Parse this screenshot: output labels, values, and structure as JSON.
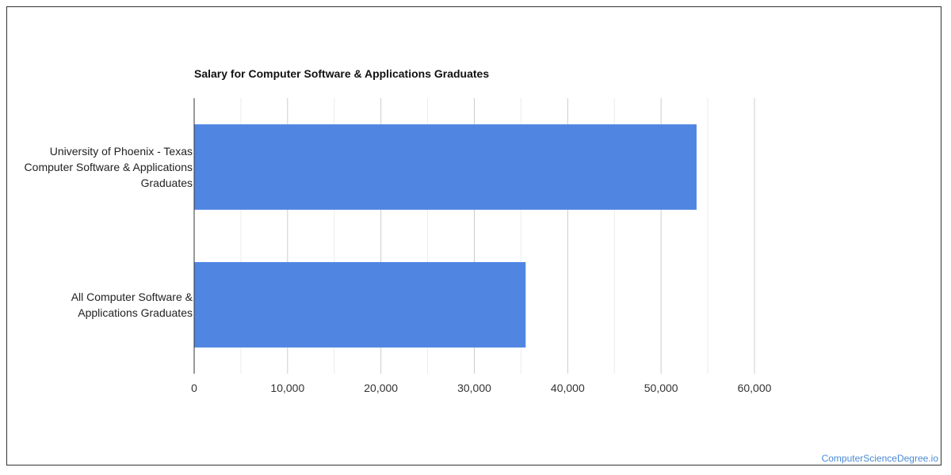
{
  "watermark": "ComputerScienceDegree.io",
  "chart_data": {
    "type": "bar",
    "orientation": "horizontal",
    "title": "Salary for Computer Software & Applications Graduates",
    "categories": [
      [
        "University of Phoenix - Texas",
        "Computer Software & Applications",
        "Graduates"
      ],
      [
        "All Computer Software &",
        "Applications Graduates"
      ]
    ],
    "values": [
      53800,
      35500
    ],
    "xlim": [
      0,
      60000
    ],
    "x_ticks": [
      0,
      10000,
      20000,
      30000,
      40000,
      50000,
      60000
    ],
    "x_tick_labels": [
      "0",
      "10,000",
      "20,000",
      "30,000",
      "40,000",
      "50,000",
      "60,000"
    ],
    "bar_color": "#5086e2",
    "grid": true,
    "legend": "none"
  }
}
